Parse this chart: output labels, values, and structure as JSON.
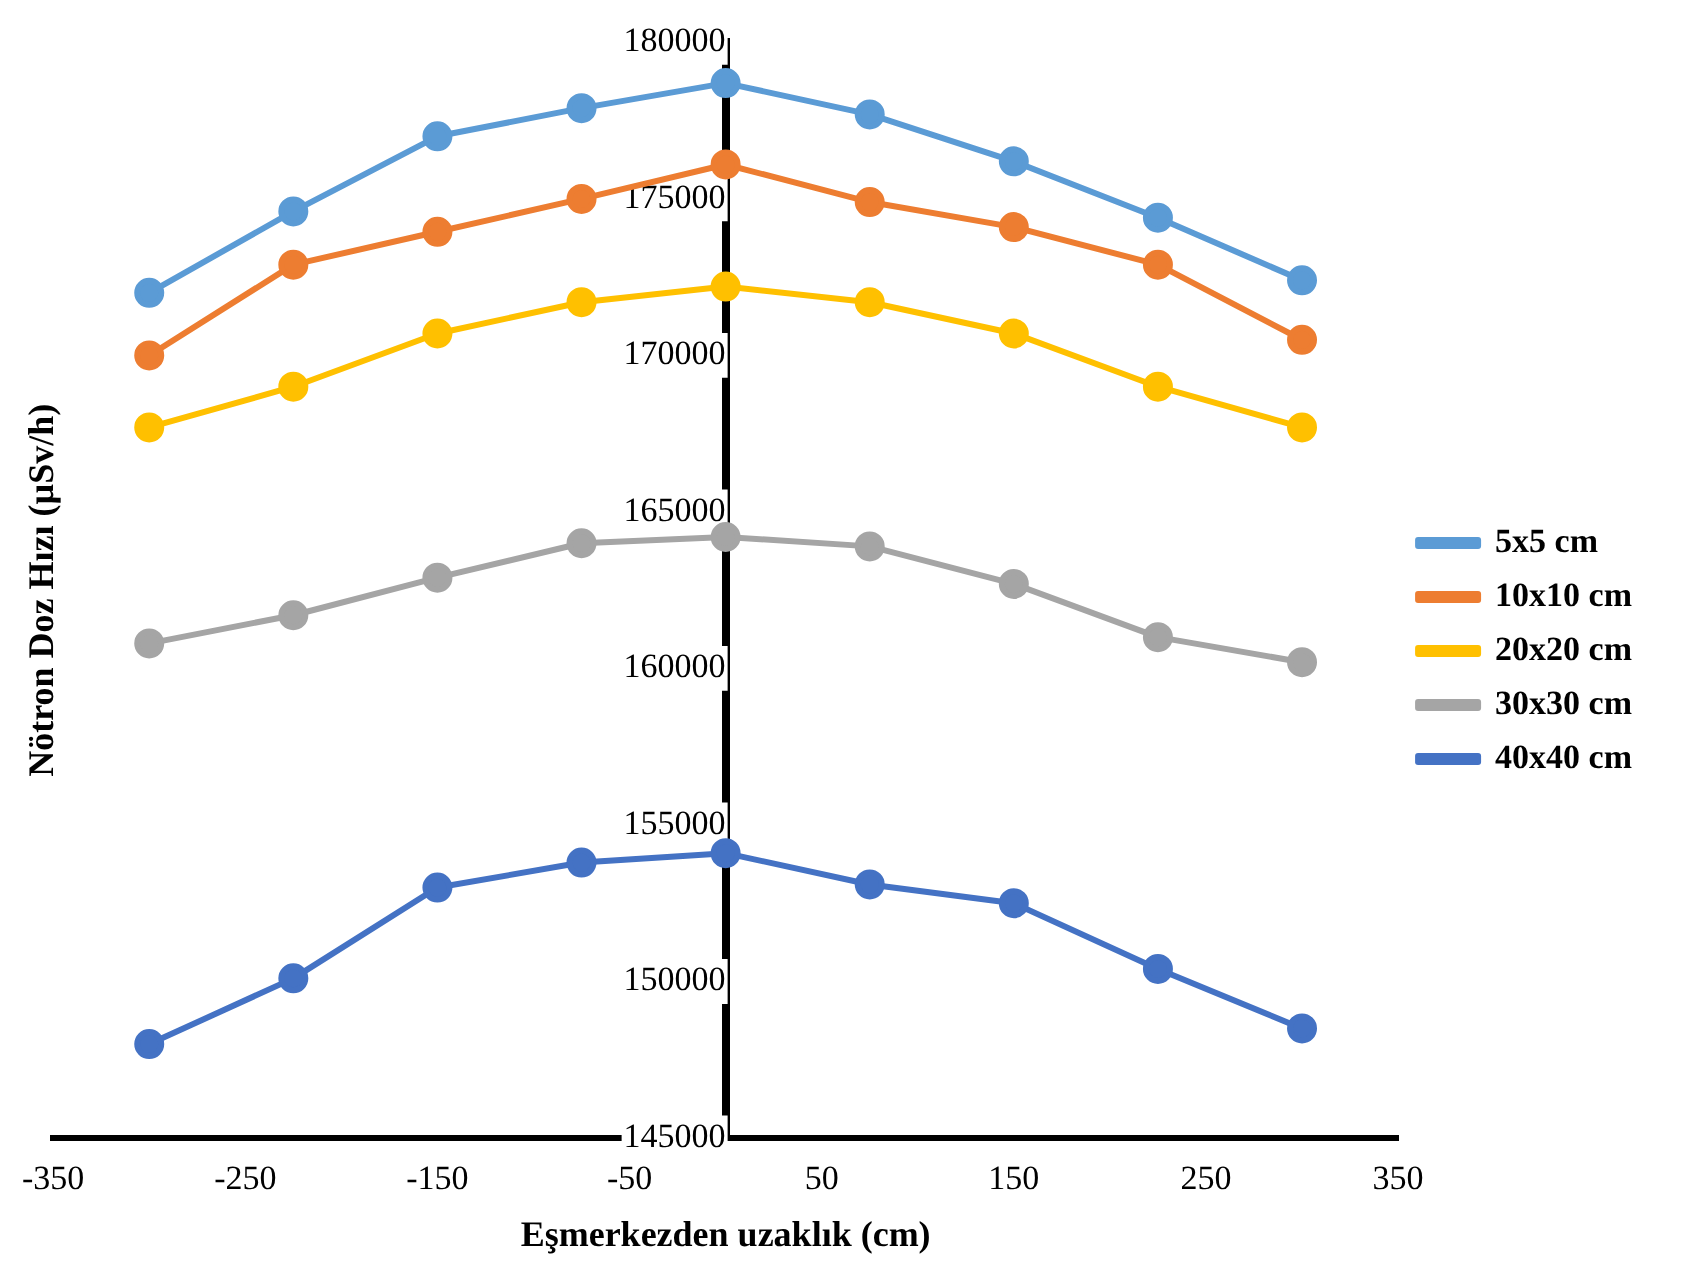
{
  "chart_data": {
    "type": "line",
    "xlabel": "Eşmerkezden uzaklık (cm)",
    "ylabel": "Nötron Doz Hızı (µSv/h)",
    "x": [
      -300,
      -225,
      -150,
      -75,
      0,
      75,
      150,
      225,
      300
    ],
    "xlim": [
      -350,
      350
    ],
    "xticks": [
      -350,
      -250,
      -150,
      -50,
      50,
      150,
      250,
      350
    ],
    "ylim": [
      145000,
      180000
    ],
    "yticks": [
      145000,
      150000,
      155000,
      160000,
      165000,
      170000,
      175000,
      180000
    ],
    "grid": false,
    "legend": "right",
    "marker": "circle",
    "line_style": "solid",
    "series": [
      {
        "name": "5x5 cm",
        "color": "#5b9bd5",
        "values": [
          172000,
          174600,
          177000,
          177900,
          178700,
          177700,
          176200,
          174400,
          172400
        ]
      },
      {
        "name": "10x10 cm",
        "color": "#ed7d31",
        "values": [
          170000,
          172900,
          173950,
          175000,
          176100,
          174900,
          174100,
          172900,
          170500
        ]
      },
      {
        "name": "20x20 cm",
        "color": "#ffc000",
        "values": [
          167700,
          169000,
          170700,
          171700,
          172200,
          171700,
          170700,
          169000,
          167700
        ]
      },
      {
        "name": "30x30 cm",
        "color": "#a5a5a5",
        "values": [
          160800,
          161700,
          162900,
          164000,
          164200,
          163900,
          162700,
          161000,
          160200
        ]
      },
      {
        "name": "40x40 cm",
        "color": "#4472c4",
        "values": [
          148000,
          150100,
          153000,
          153800,
          154100,
          153100,
          152500,
          150400,
          148500
        ]
      }
    ]
  }
}
